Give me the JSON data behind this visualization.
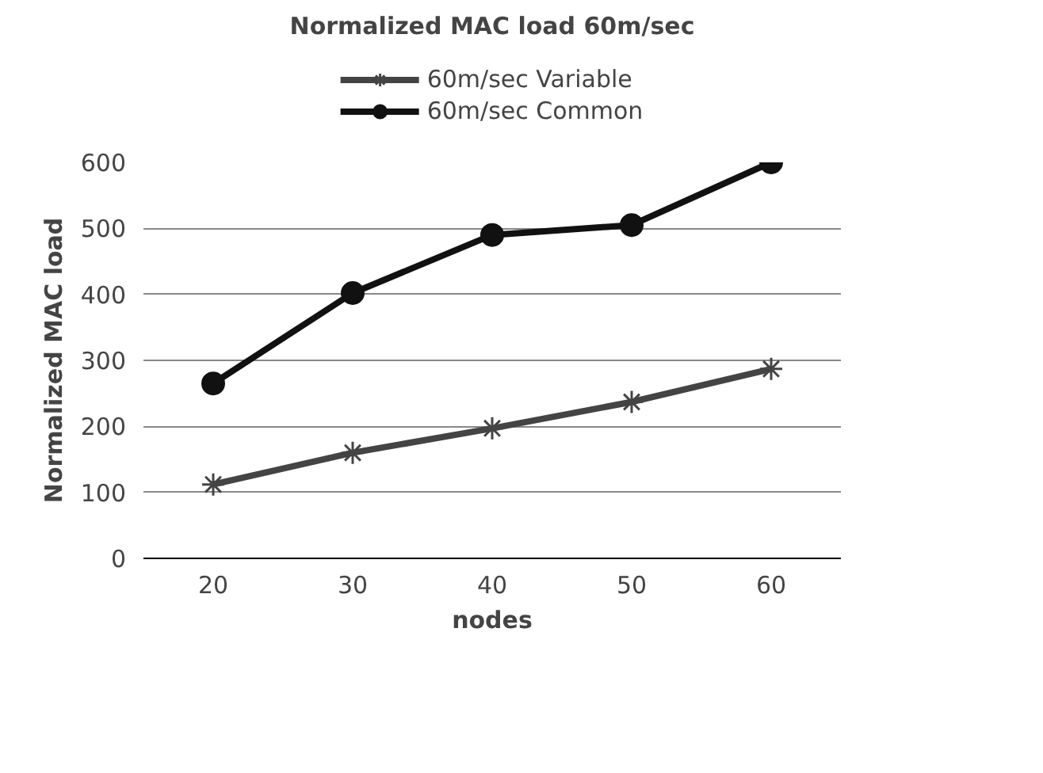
{
  "chart_data": {
    "type": "line",
    "title": "Normalized MAC load 60m/sec",
    "xlabel": "nodes",
    "ylabel": "Normalized MAC load",
    "categories": [
      "20",
      "30",
      "40",
      "50",
      "60"
    ],
    "series": [
      {
        "name": "60m/sec Variable",
        "color": "#444444",
        "marker": "cross",
        "values": [
          112,
          160,
          197,
          237,
          287
        ]
      },
      {
        "name": "60m/sec Common",
        "color": "#111111",
        "marker": "circle",
        "values": [
          265,
          402,
          490,
          505,
          600
        ]
      }
    ],
    "ylim": [
      0,
      600
    ],
    "yticks": [
      0,
      100,
      200,
      300,
      400,
      500,
      600
    ],
    "grid": "y",
    "legend": "top",
    "line_style": "solid"
  }
}
